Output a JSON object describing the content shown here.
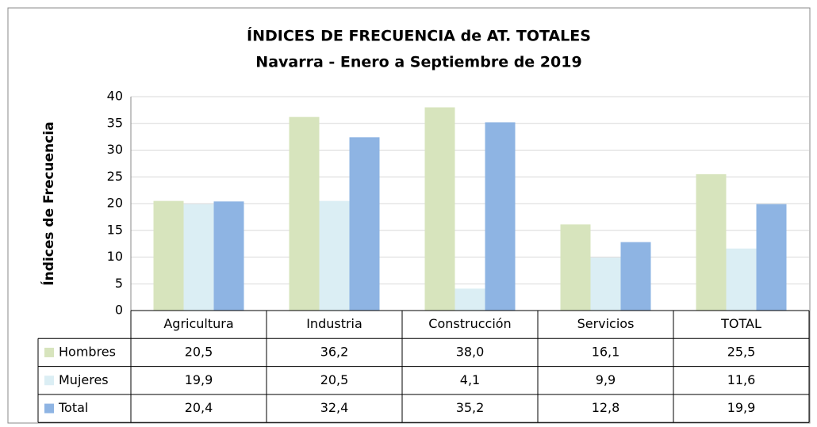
{
  "chart_data": {
    "type": "bar",
    "title": "ÍNDICES DE FRECUENCIA de AT. TOTALES",
    "subtitle": "Navarra - Enero a Septiembre de 2019",
    "y_label": "Índices de Frecuencia",
    "categories": [
      "Agricultura",
      "Industria",
      "Construcción",
      "Servicios",
      "TOTAL"
    ],
    "series": [
      {
        "name": "Hombres",
        "color": "#d7e4bd",
        "values": [
          20.5,
          36.2,
          38.0,
          16.1,
          25.5
        ],
        "value_labels": [
          "20,5",
          "36,2",
          "38,0",
          "16,1",
          "25,5"
        ]
      },
      {
        "name": "Mujeres",
        "color": "#dbeef4",
        "values": [
          19.9,
          20.5,
          4.1,
          9.9,
          11.6
        ],
        "value_labels": [
          "19,9",
          "20,5",
          "4,1",
          "9,9",
          "11,6"
        ]
      },
      {
        "name": "Total",
        "color": "#8eb4e3",
        "values": [
          20.4,
          32.4,
          35.2,
          12.8,
          19.9
        ],
        "value_labels": [
          "20,4",
          "32,4",
          "35,2",
          "12,8",
          "19,9"
        ]
      }
    ],
    "ylim": [
      0,
      40
    ],
    "yticks": [
      0,
      5,
      10,
      15,
      20,
      25,
      30,
      35,
      40
    ],
    "grid": true
  }
}
